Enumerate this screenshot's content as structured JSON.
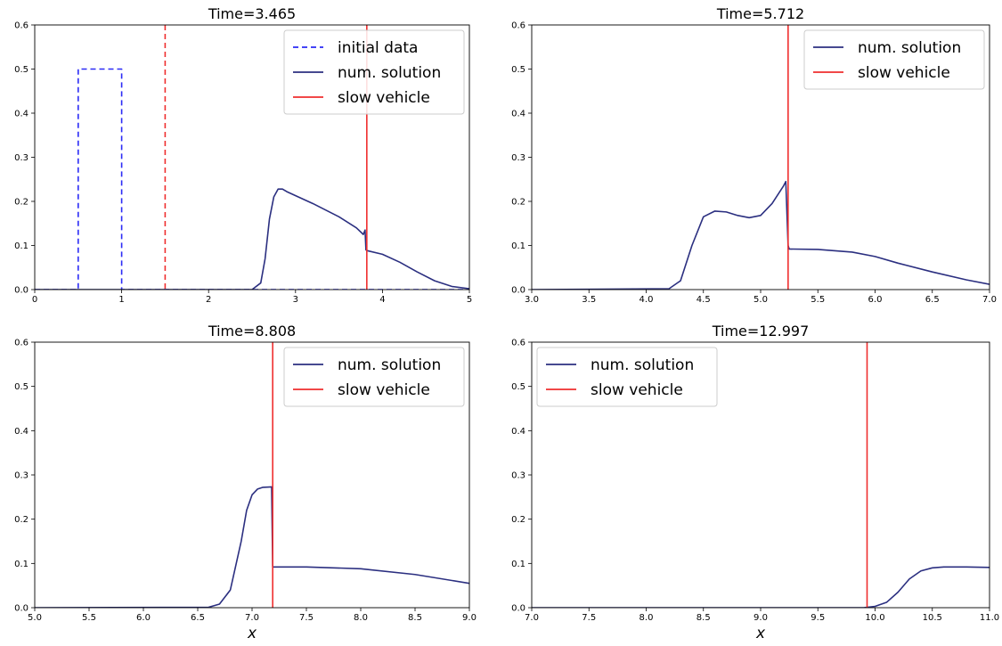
{
  "colors": {
    "solution": "#2b2f80",
    "initial": "#2a2af5",
    "vehicle": "#ef2e2e",
    "vehicle_initial": "#ef2e2e"
  },
  "chart_data": [
    {
      "type": "line",
      "title": "Time=3.465",
      "xlabel": "",
      "xlim": [
        0,
        5
      ],
      "ylim": [
        0,
        0.6
      ],
      "xticks": [
        "0",
        "1",
        "2",
        "3",
        "4",
        "5"
      ],
      "yticks": [
        "0.0",
        "0.1",
        "0.2",
        "0.3",
        "0.4",
        "0.5",
        "0.6"
      ],
      "legend": {
        "placement": "top-right",
        "entries": [
          "initial data",
          "num. solution",
          "slow vehicle"
        ]
      },
      "series": [
        {
          "name": "initial data",
          "style": "dashed",
          "x": [
            0,
            0.5,
            0.5,
            1.0,
            1.0,
            5.0
          ],
          "y": [
            0,
            0,
            0.5,
            0.5,
            0,
            0
          ]
        },
        {
          "name": "num. solution",
          "style": "solid",
          "x": [
            0,
            2.5,
            2.6,
            2.65,
            2.7,
            2.75,
            2.8,
            2.85,
            2.9,
            3.2,
            3.5,
            3.7,
            3.78,
            3.8,
            3.81,
            3.83,
            4.0,
            4.2,
            4.4,
            4.6,
            4.8,
            5.0
          ],
          "y": [
            0,
            0,
            0.015,
            0.07,
            0.16,
            0.21,
            0.228,
            0.228,
            0.222,
            0.195,
            0.165,
            0.14,
            0.125,
            0.135,
            0.09,
            0.088,
            0.08,
            0.062,
            0.04,
            0.02,
            0.007,
            0.002
          ]
        },
        {
          "name": "slow vehicle",
          "style": "solid",
          "vline": 3.82
        },
        {
          "name": "",
          "style": "dashed",
          "vline": 1.5
        }
      ]
    },
    {
      "type": "line",
      "title": "Time=5.712",
      "xlabel": "",
      "xlim": [
        3.0,
        7.0
      ],
      "ylim": [
        0,
        0.6
      ],
      "xticks": [
        "3.0",
        "3.5",
        "4.0",
        "4.5",
        "5.0",
        "5.5",
        "6.0",
        "6.5",
        "7.0"
      ],
      "yticks": [
        "0.0",
        "0.1",
        "0.2",
        "0.3",
        "0.4",
        "0.5",
        "0.6"
      ],
      "legend": {
        "placement": "top-right",
        "entries": [
          "num. solution",
          "slow vehicle"
        ]
      },
      "series": [
        {
          "name": "num. solution",
          "style": "solid",
          "x": [
            3.0,
            4.2,
            4.3,
            4.4,
            4.5,
            4.6,
            4.7,
            4.8,
            4.9,
            5.0,
            5.1,
            5.2,
            5.22,
            5.24,
            5.25,
            5.5,
            5.8,
            6.0,
            6.2,
            6.5,
            6.8,
            7.0
          ],
          "y": [
            0,
            0.002,
            0.02,
            0.1,
            0.165,
            0.178,
            0.176,
            0.168,
            0.163,
            0.168,
            0.195,
            0.235,
            0.245,
            0.1,
            0.092,
            0.091,
            0.085,
            0.075,
            0.06,
            0.04,
            0.022,
            0.012
          ]
        },
        {
          "name": "slow vehicle",
          "style": "solid",
          "vline": 5.24
        }
      ]
    },
    {
      "type": "line",
      "title": "Time=8.808",
      "xlabel": "x",
      "xlim": [
        5.0,
        9.0
      ],
      "ylim": [
        0,
        0.6
      ],
      "xticks": [
        "5.0",
        "5.5",
        "6.0",
        "6.5",
        "7.0",
        "7.5",
        "8.0",
        "8.5",
        "9.0"
      ],
      "yticks": [
        "0.0",
        "0.1",
        "0.2",
        "0.3",
        "0.4",
        "0.5",
        "0.6"
      ],
      "legend": {
        "placement": "top-right",
        "entries": [
          "num. solution",
          "slow vehicle"
        ]
      },
      "series": [
        {
          "name": "num. solution",
          "style": "solid",
          "x": [
            5.0,
            6.6,
            6.7,
            6.8,
            6.9,
            6.95,
            7.0,
            7.05,
            7.1,
            7.18,
            7.19,
            7.2,
            7.5,
            8.0,
            8.5,
            9.0
          ],
          "y": [
            0,
            0.001,
            0.008,
            0.04,
            0.15,
            0.22,
            0.255,
            0.268,
            0.272,
            0.273,
            0.092,
            0.092,
            0.092,
            0.088,
            0.075,
            0.055
          ]
        },
        {
          "name": "slow vehicle",
          "style": "solid",
          "vline": 7.19
        }
      ]
    },
    {
      "type": "line",
      "title": "Time=12.997",
      "xlabel": "x",
      "xlim": [
        7.0,
        11.0
      ],
      "ylim": [
        0,
        0.6
      ],
      "xticks": [
        "7.0",
        "7.5",
        "8.0",
        "8.5",
        "9.0",
        "9.5",
        "10.0",
        "10.5",
        "11.0"
      ],
      "yticks": [
        "0.0",
        "0.1",
        "0.2",
        "0.3",
        "0.4",
        "0.5",
        "0.6"
      ],
      "legend": {
        "placement": "top-left",
        "entries": [
          "num. solution",
          "slow vehicle"
        ]
      },
      "series": [
        {
          "name": "num. solution",
          "style": "solid",
          "x": [
            7.0,
            9.9,
            10.0,
            10.1,
            10.2,
            10.3,
            10.4,
            10.5,
            10.6,
            10.8,
            11.0
          ],
          "y": [
            0,
            0,
            0.003,
            0.012,
            0.035,
            0.065,
            0.083,
            0.09,
            0.092,
            0.092,
            0.091
          ]
        },
        {
          "name": "slow vehicle",
          "style": "solid",
          "vline": 9.93
        }
      ]
    }
  ]
}
